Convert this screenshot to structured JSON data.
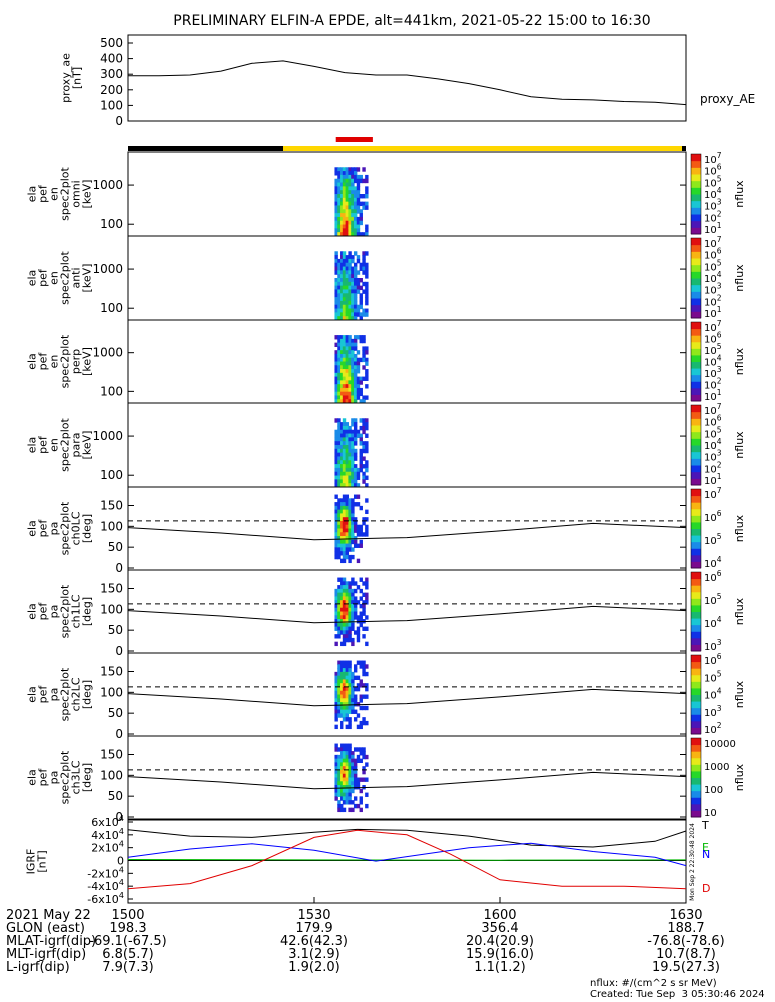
{
  "title": "PRELIMINARY ELFIN-A EPDE, alt=441km, 2021-05-22 15:00 to 16:30",
  "time_axis": {
    "ticks": [
      "1500",
      "1530",
      "1600",
      "1630"
    ]
  },
  "state_bar": {
    "colors": {
      "night": "#000000",
      "day": "#ffd700",
      "science_zone": "#e00000"
    }
  },
  "colors": {
    "colorbar": [
      "#ffffff",
      "#7a0a8e",
      "#4b16b7",
      "#1030e6",
      "#1a8be8",
      "#19c6d4",
      "#18b870",
      "#26d829",
      "#8fe81b",
      "#e7ea1a",
      "#f8b412",
      "#f35a14",
      "#e01010"
    ],
    "gsm_components": {
      "T": "#000000",
      "E": "#00b800",
      "N": "#0000ff",
      "D": "#e00000"
    }
  },
  "chart_data": [
    {
      "type": "line",
      "ylabel": "proxy_ae\n[nT]",
      "y_ticks": [
        "500",
        "400",
        "300",
        "200",
        "100",
        "0"
      ],
      "ylim": [
        0,
        500
      ],
      "series": [
        {
          "name": "proxy_AE",
          "x_min": [
            0,
            5,
            10,
            15,
            20,
            25,
            30,
            35,
            40,
            45,
            50,
            55,
            60,
            65,
            70,
            75,
            80,
            85,
            90
          ],
          "values": [
            290,
            290,
            295,
            320,
            370,
            385,
            350,
            310,
            295,
            295,
            270,
            240,
            200,
            155,
            140,
            135,
            125,
            120,
            105
          ]
        }
      ]
    },
    {
      "type": "heatmap",
      "ylabel": "ela\npef\nen\nspec2plot\nomni\n[keV]",
      "y_ticks": [
        "1000",
        "100"
      ],
      "scale": "log",
      "ylim": [
        50,
        7000
      ],
      "colorbar_label": "nflux",
      "colorbar_ticks": [
        "10^7",
        "10^6",
        "10^5",
        "10^4",
        "10^3",
        "10^2",
        "10^1"
      ]
    },
    {
      "type": "heatmap",
      "ylabel": "ela\npef\nen\nspec2plot\nanti\n[keV]",
      "y_ticks": [
        "1000",
        "100"
      ],
      "scale": "log",
      "ylim": [
        50,
        7000
      ],
      "colorbar_label": "nflux",
      "colorbar_ticks": [
        "10^7",
        "10^6",
        "10^5",
        "10^4",
        "10^3",
        "10^2",
        "10^1"
      ]
    },
    {
      "type": "heatmap",
      "ylabel": "ela\npef\nen\nspec2plot\nperp\n[keV]",
      "y_ticks": [
        "1000",
        "100"
      ],
      "scale": "log",
      "ylim": [
        50,
        7000
      ],
      "colorbar_label": "nflux",
      "colorbar_ticks": [
        "10^7",
        "10^6",
        "10^5",
        "10^4",
        "10^3",
        "10^2",
        "10^1"
      ]
    },
    {
      "type": "heatmap",
      "ylabel": "ela\npef\nen\nspec2plot\npara\n[keV]",
      "y_ticks": [
        "1000",
        "100"
      ],
      "scale": "log",
      "ylim": [
        50,
        7000
      ],
      "colorbar_label": "nflux",
      "colorbar_ticks": [
        "10^7",
        "10^6",
        "10^5",
        "10^4",
        "10^3",
        "10^2",
        "10^1"
      ]
    },
    {
      "type": "heatmap",
      "ylabel": "ela\npef\npa\nspec2plot\nch0LC\n[deg]",
      "y_ticks": [
        "150",
        "100",
        "50",
        "0"
      ],
      "ylim": [
        0,
        180
      ],
      "colorbar_label": "nflux",
      "colorbar_ticks": [
        "10^7",
        "10^6",
        "10^5",
        "10^4"
      ],
      "loss_cone": {
        "x_min": [
          0,
          15,
          30,
          45,
          60,
          75,
          90
        ],
        "values": [
          97,
          84,
          68,
          73,
          89,
          107,
          97
        ]
      },
      "anti_loss_cone": {
        "x_min": [
          0,
          15,
          30,
          45,
          60,
          75,
          90
        ],
        "values": [
          113,
          113,
          113,
          113,
          113,
          113,
          113
        ]
      }
    },
    {
      "type": "heatmap",
      "ylabel": "ela\npef\npa\nspec2plot\nch1LC\n[deg]",
      "y_ticks": [
        "150",
        "100",
        "50",
        "0"
      ],
      "ylim": [
        0,
        180
      ],
      "colorbar_label": "nflux",
      "colorbar_ticks": [
        "10^6",
        "10^5",
        "10^4",
        "10^3"
      ],
      "loss_cone": {
        "x_min": [
          0,
          15,
          30,
          45,
          60,
          75,
          90
        ],
        "values": [
          97,
          84,
          68,
          73,
          89,
          107,
          97
        ]
      },
      "anti_loss_cone": {
        "x_min": [
          0,
          15,
          30,
          45,
          60,
          75,
          90
        ],
        "values": [
          113,
          113,
          113,
          113,
          113,
          113,
          113
        ]
      }
    },
    {
      "type": "heatmap",
      "ylabel": "ela\npef\npa\nspec2plot\nch2LC\n[deg]",
      "y_ticks": [
        "150",
        "100",
        "50",
        "0"
      ],
      "ylim": [
        0,
        180
      ],
      "colorbar_label": "nflux",
      "colorbar_ticks": [
        "10^6",
        "10^5",
        "10^4",
        "10^3",
        "10^2"
      ],
      "loss_cone": {
        "x_min": [
          0,
          15,
          30,
          45,
          60,
          75,
          90
        ],
        "values": [
          97,
          84,
          68,
          73,
          89,
          107,
          97
        ]
      },
      "anti_loss_cone": {
        "x_min": [
          0,
          15,
          30,
          45,
          60,
          75,
          90
        ],
        "values": [
          113,
          113,
          113,
          113,
          113,
          113,
          113
        ]
      }
    },
    {
      "type": "heatmap",
      "ylabel": "ela\npef\npa\nspec2plot\nch3LC\n[deg]",
      "y_ticks": [
        "150",
        "100",
        "50",
        "0"
      ],
      "ylim": [
        0,
        180
      ],
      "colorbar_label": "nflux",
      "colorbar_ticks": [
        "10000",
        "1000",
        "100",
        "10"
      ],
      "loss_cone": {
        "x_min": [
          0,
          15,
          30,
          45,
          60,
          75,
          90
        ],
        "values": [
          97,
          84,
          68,
          73,
          89,
          107,
          97
        ]
      },
      "anti_loss_cone": {
        "x_min": [
          0,
          15,
          30,
          45,
          60,
          75,
          90
        ],
        "values": [
          113,
          113,
          113,
          113,
          113,
          113,
          113
        ]
      }
    },
    {
      "type": "line",
      "ylabel": "IGRF\n[nT]",
      "y_ticks": [
        "6x10^4",
        "4x10^4",
        "2x10^4",
        "0",
        "-2x10^4",
        "-4x10^4",
        "-6x10^4"
      ],
      "ylim": [
        -60000,
        60000
      ],
      "series": [
        {
          "name": "T",
          "x_min": [
            0,
            10,
            20,
            30,
            37,
            45,
            55,
            65,
            75,
            85,
            90
          ],
          "values": [
            48000,
            38000,
            36000,
            44000,
            48500,
            47000,
            38000,
            24000,
            21000,
            30000,
            46000
          ]
        },
        {
          "name": "E",
          "x_min": [
            0,
            30,
            60,
            90
          ],
          "values": [
            1500,
            1000,
            500,
            1000
          ]
        },
        {
          "name": "N",
          "x_min": [
            0,
            10,
            20,
            30,
            40,
            45,
            55,
            65,
            75,
            85,
            90
          ],
          "values": [
            5000,
            18000,
            26000,
            16000,
            -1000,
            6000,
            20000,
            27000,
            14000,
            5000,
            -8000
          ]
        },
        {
          "name": "D",
          "x_min": [
            0,
            10,
            20,
            30,
            37,
            45,
            52,
            60,
            70,
            80,
            90
          ],
          "values": [
            -44000,
            -36000,
            -8000,
            36000,
            47000,
            40000,
            10000,
            -30000,
            -40000,
            -40000,
            -44000
          ]
        }
      ]
    }
  ],
  "footer": {
    "rows": [
      {
        "label": "2021 May 22",
        "values": [
          "1500",
          "1530",
          "1600",
          "1630"
        ]
      },
      {
        "label": "GLON (east)",
        "values": [
          "198.3",
          "179.9",
          "356.4",
          "188.7"
        ]
      },
      {
        "label": "MLAT-igrf(dip)",
        "values": [
          "-69.1(-67.5)",
          "42.6(42.3)",
          "20.4(20.9)",
          "-76.8(-78.6)"
        ]
      },
      {
        "label": "MLT-igrf(dip)",
        "values": [
          "6.8(5.7)",
          "3.1(2.9)",
          "15.9(16.0)",
          "10.7(8.7)"
        ]
      },
      {
        "label": "L-igrf(dip)",
        "values": [
          "7.9(7.3)",
          "1.9(2.0)",
          "1.1(1.2)",
          "19.5(27.3)"
        ]
      }
    ],
    "unit_note": "nflux: #/(cm^2 s sr MeV)",
    "created": "Created: Tue Sep  3 05:30:46 2024",
    "side_stamp": "Mon Sep  2 22:30:48 2024"
  }
}
